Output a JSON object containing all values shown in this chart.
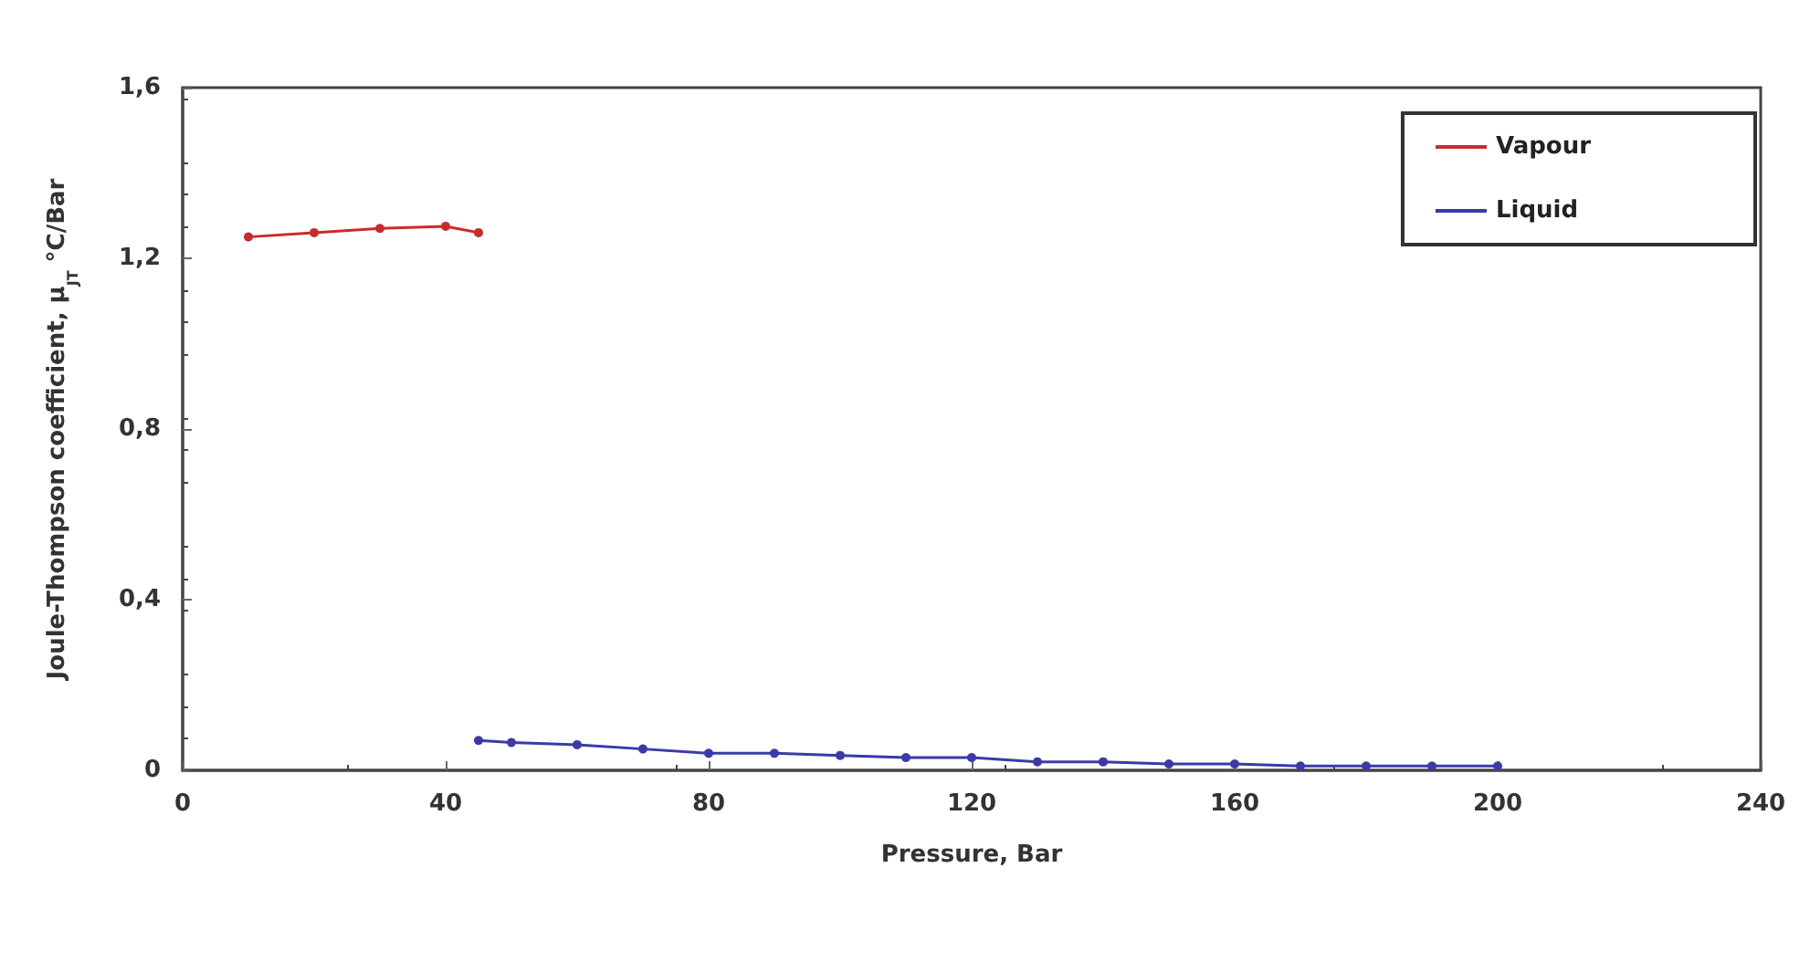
{
  "chart_data": {
    "type": "line",
    "xlabel": "Pressure, Bar",
    "ylabel": "Joule-Thompson coefficient, μ$_{JT}$ °C/Bar",
    "xlim": [
      0,
      240
    ],
    "xticks": [
      0,
      40,
      80,
      120,
      160,
      200,
      240
    ],
    "ylim": [
      0,
      1.6
    ],
    "yticks": [
      {
        "value": 0,
        "label": "0"
      },
      {
        "value": 0.4,
        "label": "0,4"
      },
      {
        "value": 0.8,
        "label": "0,8"
      },
      {
        "value": 1.2,
        "label": "1,2"
      },
      {
        "value": 1.6,
        "label": "1,6"
      }
    ],
    "series": [
      {
        "name": "Vapour",
        "color": "#cc2a2a",
        "x": [
          10,
          20,
          30,
          40,
          45
        ],
        "values": [
          1.25,
          1.26,
          1.27,
          1.275,
          1.26
        ]
      },
      {
        "name": "Liquid",
        "color": "#3a3aa8",
        "x": [
          45,
          50,
          60,
          70,
          80,
          90,
          100,
          110,
          120,
          130,
          140,
          150,
          160,
          170,
          180,
          190,
          200
        ],
        "values": [
          0.07,
          0.065,
          0.06,
          0.05,
          0.04,
          0.04,
          0.035,
          0.03,
          0.03,
          0.02,
          0.02,
          0.015,
          0.015,
          0.01,
          0.01,
          0.01,
          0.01
        ]
      }
    ],
    "legend": "top right",
    "grid": false,
    "marker": "circle",
    "line_style": "solid"
  }
}
